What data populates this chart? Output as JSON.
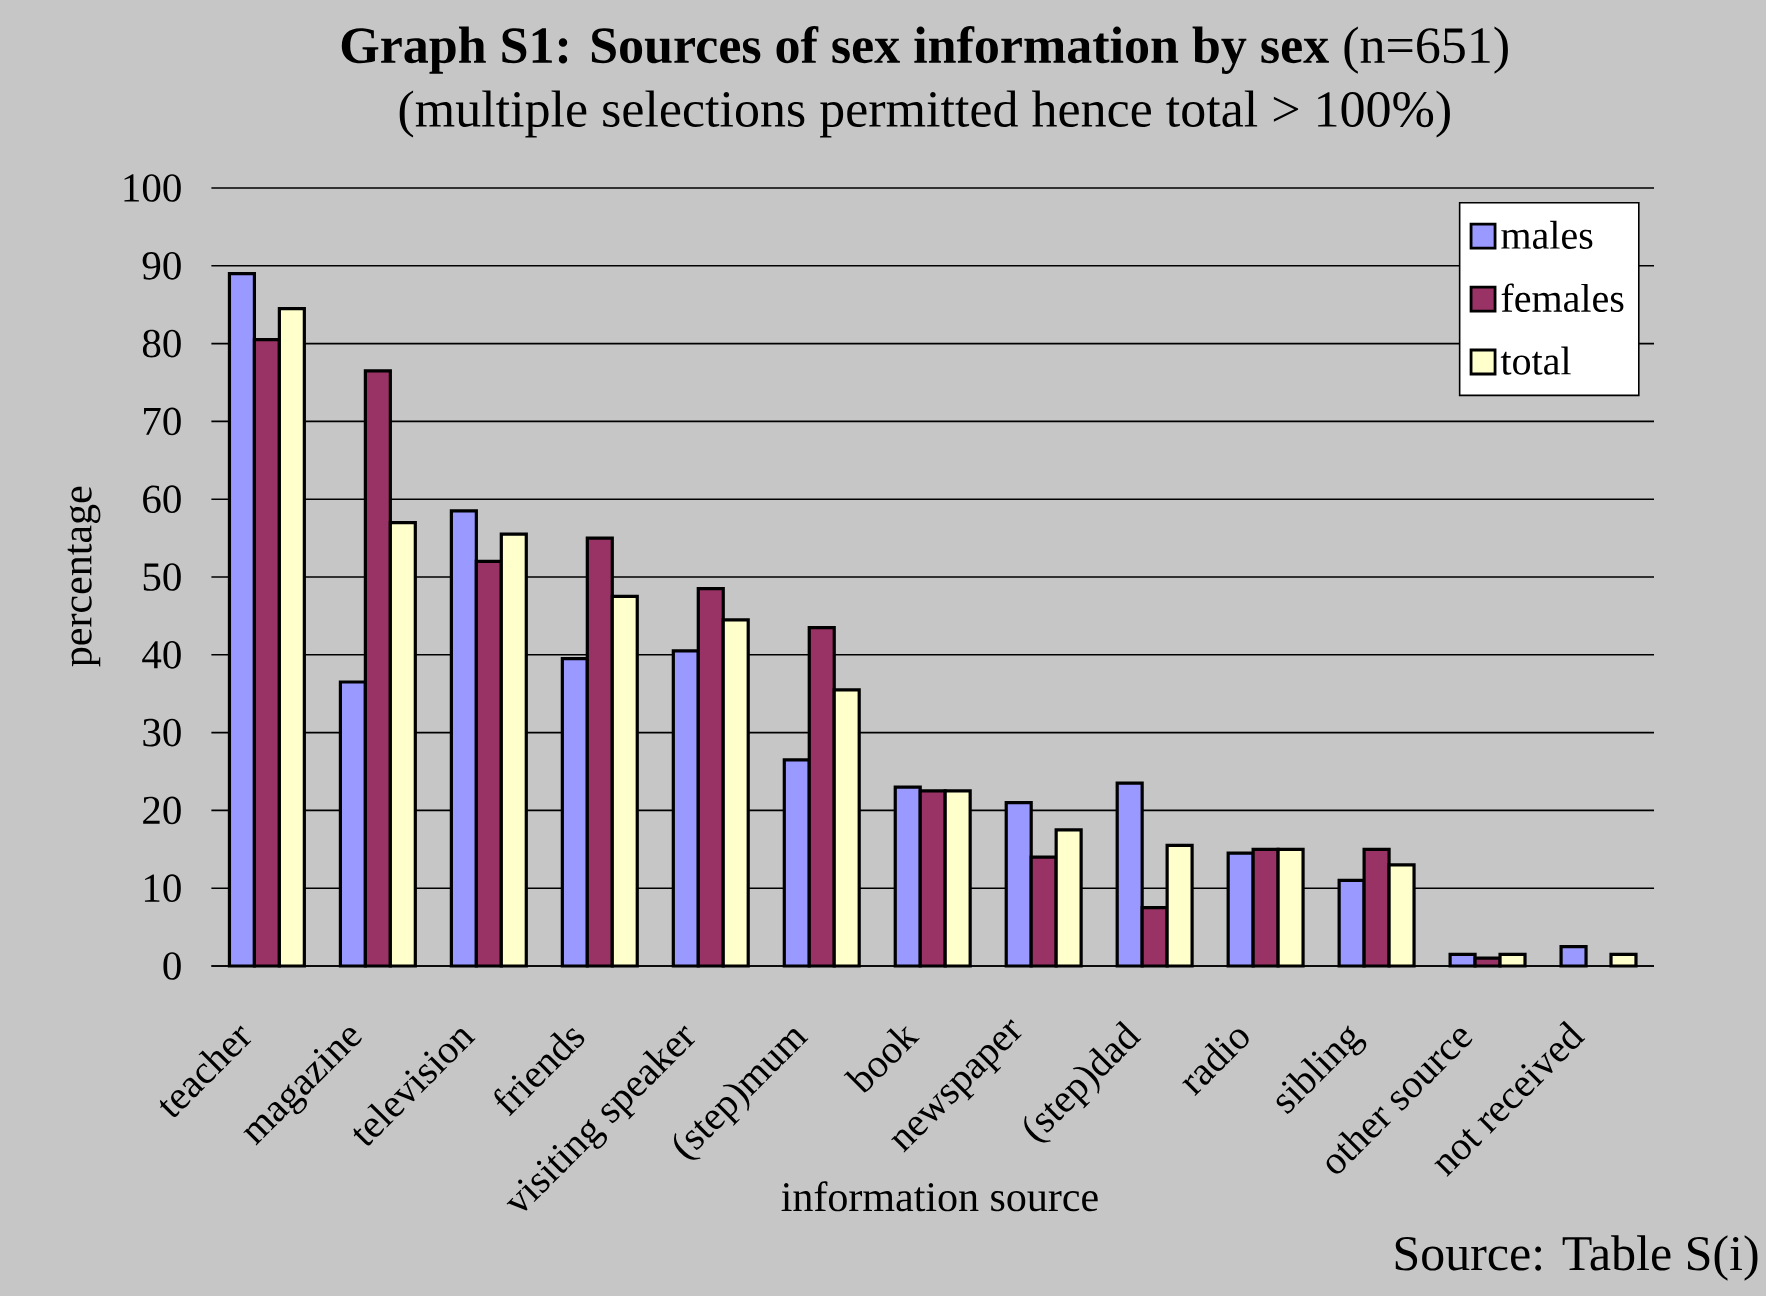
{
  "chart_data": {
    "type": "bar",
    "title": "**Graph S1: Sources of sex information by sex** (n=651)",
    "subtitle": "(multiple selections permitted hence total > 100%)",
    "xlabel": "information source",
    "ylabel": "percentage",
    "categories": [
      "teacher",
      "magazine",
      "television",
      "friends",
      "visiting speaker",
      "(step)mum",
      "book",
      "newspaper",
      "(step)dad",
      "radio",
      "sibling",
      "other source",
      "not received"
    ],
    "series": [
      {
        "name": "males",
        "color": "#9999ff",
        "values": [
          89,
          36.5,
          58.5,
          39.5,
          40.5,
          26.5,
          23,
          21,
          23.5,
          14.5,
          11,
          1.5,
          2.5
        ]
      },
      {
        "name": "females",
        "color": "#993366",
        "values": [
          80.5,
          76.5,
          52,
          55,
          48.5,
          43.5,
          22.5,
          14,
          7.5,
          15,
          15,
          1,
          null
        ]
      },
      {
        "name": "total",
        "color": "#ffffcc",
        "values": [
          84.5,
          57,
          55.5,
          47.5,
          44.5,
          35.5,
          22.5,
          17.5,
          15.5,
          15,
          13,
          1.5,
          1.5
        ]
      }
    ],
    "ylim": [
      0,
      100
    ],
    "yticks": [
      0,
      10,
      20,
      30,
      40,
      50,
      60,
      70,
      80,
      90,
      100
    ],
    "grid": "y",
    "legend": "top right",
    "annotations": [
      "Source: Table S(i)"
    ]
  }
}
